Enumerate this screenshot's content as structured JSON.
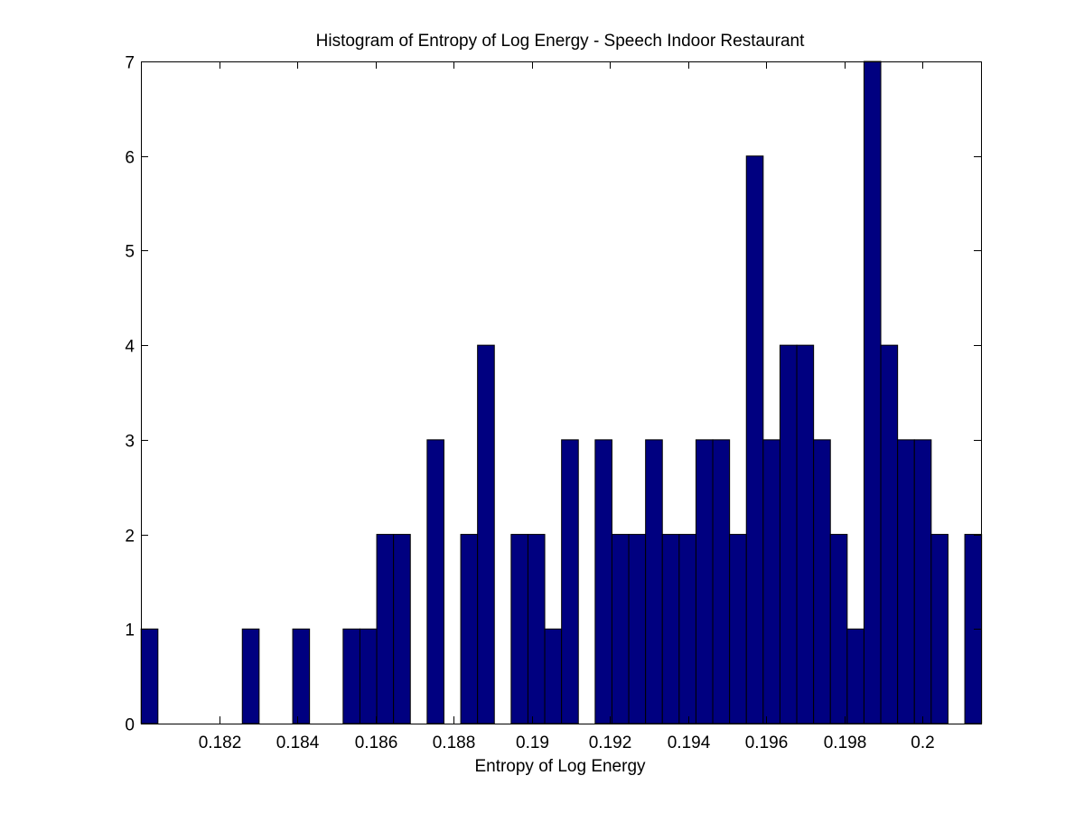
{
  "chart_data": {
    "type": "bar",
    "title": "Histogram of Entropy of Log Energy - Speech Indoor Restaurant",
    "xlabel": "Entropy of Log Energy",
    "ylabel": "",
    "xlim": [
      0.18,
      0.2015
    ],
    "ylim": [
      0,
      7
    ],
    "bin_width": 0.00043,
    "bar_color": "#000080",
    "edge_color": "#000000",
    "grid": false,
    "xticks": [
      0.182,
      0.184,
      0.186,
      0.188,
      0.19,
      0.192,
      0.194,
      0.196,
      0.198,
      0.2
    ],
    "xtick_labels": [
      "0.182",
      "0.184",
      "0.186",
      "0.188",
      "0.19",
      "0.192",
      "0.194",
      "0.196",
      "0.198",
      "0.2"
    ],
    "yticks": [
      0,
      1,
      2,
      3,
      4,
      5,
      6,
      7
    ],
    "ytick_labels": [
      "0",
      "1",
      "2",
      "3",
      "4",
      "5",
      "6",
      "7"
    ],
    "bin_centers": [
      0.18022,
      0.18066,
      0.18109,
      0.18152,
      0.18195,
      0.18238,
      0.18281,
      0.18324,
      0.18367,
      0.1841,
      0.18453,
      0.18496,
      0.18539,
      0.18582,
      0.18625,
      0.18668,
      0.18711,
      0.18754,
      0.18797,
      0.1884,
      0.18883,
      0.18926,
      0.18969,
      0.19012,
      0.19055,
      0.19098,
      0.19141,
      0.19184,
      0.19227,
      0.1927,
      0.19313,
      0.19356,
      0.19399,
      0.19442,
      0.19485,
      0.19528,
      0.19571,
      0.19614,
      0.19657,
      0.197,
      0.19743,
      0.19786,
      0.19829,
      0.19872,
      0.19915,
      0.19958,
      0.20001,
      0.20044,
      0.20087,
      0.2013
    ],
    "counts": [
      1,
      0,
      0,
      0,
      0,
      0,
      1,
      0,
      0,
      1,
      0,
      0,
      1,
      1,
      2,
      2,
      0,
      3,
      0,
      2,
      4,
      0,
      2,
      2,
      1,
      3,
      0,
      3,
      2,
      2,
      3,
      2,
      2,
      3,
      3,
      2,
      6,
      3,
      4,
      4,
      3,
      2,
      1,
      7,
      4,
      3,
      3,
      2,
      0,
      2
    ]
  }
}
